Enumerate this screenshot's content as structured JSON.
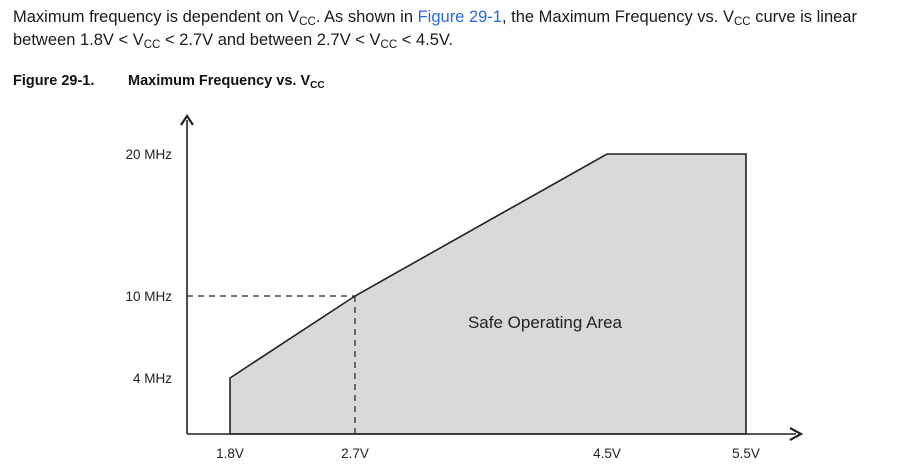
{
  "paragraph": {
    "part1": "Maximum frequency is dependent on V",
    "sub1": "CC",
    "part2": ". As shown in ",
    "link": "Figure 29-1",
    "part3": ", the Maximum Frequency vs. V",
    "sub2": "CC",
    "part4": " curve is linear between 1.8V < V",
    "sub3": "CC",
    "part5": " < 2.7V and between 2.7V < V",
    "sub4": "CC",
    "part6": " < 4.5V."
  },
  "figure": {
    "number": "Figure 29-1.",
    "title": "Maximum Frequency vs. V",
    "title_sub": "CC"
  },
  "colors": {
    "area_fill": "#d9d9d9",
    "link": "#2a6ad8"
  },
  "chart_data": {
    "type": "area",
    "title": "Maximum Frequency vs. VCC",
    "x": [
      1.8,
      2.7,
      4.5,
      5.5
    ],
    "series": [
      {
        "name": "",
        "values": [
          4,
          10,
          20,
          20
        ]
      }
    ],
    "x_tick_labels": [
      "1.8V",
      "2.7V",
      "4.5V",
      "5.5V"
    ],
    "y_ticks": [
      4,
      10,
      20
    ],
    "y_tick_labels": [
      "4 MHz",
      "10 MHz",
      "20 MHz"
    ],
    "xlim": [
      1.8,
      5.5
    ],
    "ylim": [
      0,
      20
    ],
    "grid": false,
    "annotations": [
      {
        "text": "Safe Operating Area",
        "x": 3.65,
        "y": 8.4
      }
    ],
    "reference_lines": [
      {
        "from": [
          1.8,
          10
        ],
        "to": [
          2.7,
          10
        ],
        "style": "dashed"
      },
      {
        "from": [
          2.7,
          0
        ],
        "to": [
          2.7,
          10
        ],
        "style": "dashed"
      }
    ]
  }
}
